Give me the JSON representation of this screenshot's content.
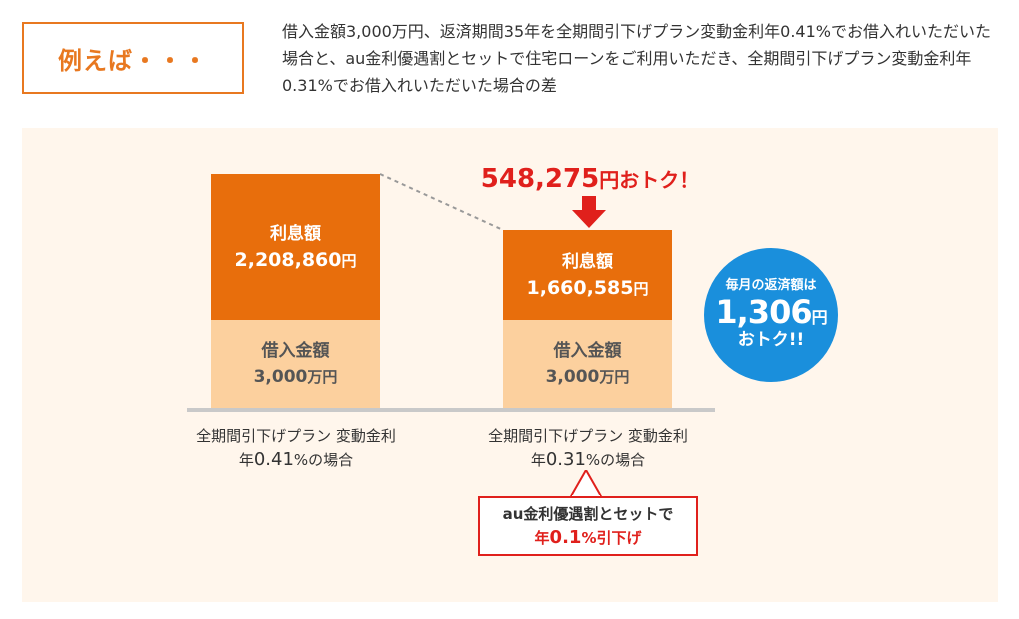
{
  "label": "例えば・・・",
  "description": "借入金額3,000万円、返済期間35年を全期間引下げプラン変動金利年0.41%でお借入れいただいた場合と、au金利優遇割とセットで住宅ローンをご利用いただき、全期間引下げプラン変動金利年0.31%でお借入れいただいた場合の差",
  "chart_data": {
    "type": "bar",
    "stacked": true,
    "categories": [
      "全期間引下げプラン 変動金利 年0.41%の場合",
      "全期間引下げプラン 変動金利 年0.31%の場合"
    ],
    "series": [
      {
        "name": "借入金額",
        "values": [
          30000000,
          30000000
        ]
      },
      {
        "name": "利息額",
        "values": [
          2208860,
          1660585
        ]
      }
    ],
    "colors": {
      "interest": "#e86e0c",
      "principal": "#fcd09e"
    },
    "bars": [
      {
        "interest_label": "利息額",
        "interest_text": "2,208,860",
        "interest_unit": "円",
        "principal_label": "借入金額",
        "principal_text": "3,000",
        "principal_unit": "万円",
        "cat_line1": "全期間引下げプラン 変動金利",
        "cat_line2_prefix": "年",
        "cat_line2_rate": "0.41",
        "cat_line2_suffix": "%の場合"
      },
      {
        "interest_label": "利息額",
        "interest_text": "1,660,585",
        "interest_unit": "円",
        "principal_label": "借入金額",
        "principal_text": "3,000",
        "principal_unit": "万円",
        "cat_line1": "全期間引下げプラン 変動金利",
        "cat_line2_prefix": "年",
        "cat_line2_rate": "0.31",
        "cat_line2_suffix": "%の場合"
      }
    ],
    "savings": {
      "amount": "548,275",
      "text": "円おトク！"
    },
    "callout": {
      "line1": "au金利優遇割とセットで",
      "prefix": "年",
      "rate": "0.1",
      "suffix": "%引下げ"
    },
    "monthly": {
      "line1": "毎月の返済額は",
      "amount": "1,306",
      "unit": "円",
      "line3": "おトク!!"
    }
  }
}
